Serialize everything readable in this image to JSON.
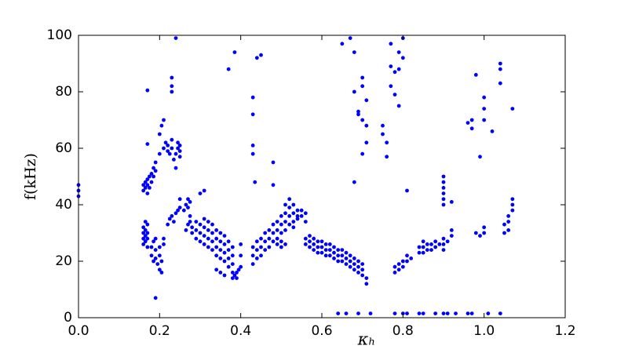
{
  "chart_data": {
    "type": "scatter",
    "xlabel": "κₕ",
    "ylabel": "f(kHz)",
    "color": "#0000ff",
    "xlim": [
      0,
      1.2
    ],
    "ylim": [
      0,
      100
    ],
    "xticks": [
      {
        "value": 0,
        "label": "0.0"
      },
      0.2,
      0.4,
      0.6,
      0.8,
      {
        "value": 1,
        "label": "1.0"
      },
      1.2
    ],
    "yticks": [
      0,
      20,
      40,
      60,
      80,
      100
    ],
    "x": [
      0,
      0,
      0,
      0.16,
      0.16,
      0.16,
      0.16,
      0.165,
      0.165,
      0.165,
      0.165,
      0.17,
      0.17,
      0.17,
      0.17,
      0.16,
      0.16,
      0.165,
      0.165,
      0.17,
      0.17,
      0.17,
      0.175,
      0.175,
      0.18,
      0.18,
      0.185,
      0.185,
      0.19,
      0.19,
      0.17,
      0.17,
      0.18,
      0.18,
      0.185,
      0.185,
      0.19,
      0.19,
      0.19,
      0.195,
      0.2,
      0.2,
      0.2,
      0.205,
      0.205,
      0.21,
      0.21,
      0.19,
      0.2,
      0.2,
      0.205,
      0.21,
      0.21,
      0.215,
      0.22,
      0.22,
      0.225,
      0.23,
      0.23,
      0.235,
      0.24,
      0.24,
      0.245,
      0.245,
      0.25,
      0.25,
      0.25,
      0.23,
      0.23,
      0.23,
      0.24,
      0.22,
      0.225,
      0.23,
      0.235,
      0.24,
      0.245,
      0.25,
      0.25,
      0.26,
      0.265,
      0.27,
      0.27,
      0.275,
      0.275,
      0.265,
      0.27,
      0.275,
      0.28,
      0.28,
      0.29,
      0.29,
      0.29,
      0.3,
      0.3,
      0.3,
      0.31,
      0.31,
      0.31,
      0.31,
      0.32,
      0.32,
      0.32,
      0.32,
      0.33,
      0.33,
      0.33,
      0.33,
      0.34,
      0.34,
      0.34,
      0.34,
      0.35,
      0.35,
      0.35,
      0.35,
      0.36,
      0.36,
      0.36,
      0.36,
      0.37,
      0.37,
      0.37,
      0.37,
      0.38,
      0.38,
      0.38,
      0.38,
      0.34,
      0.35,
      0.36,
      0.38,
      0.385,
      0.39,
      0.39,
      0.395,
      0.4,
      0.4,
      0.4,
      0.3,
      0.31,
      0.37,
      0.385,
      0.43,
      0.43,
      0.43,
      0.43,
      0.435,
      0.44,
      0.45,
      0.43,
      0.43,
      0.43,
      0.44,
      0.44,
      0.44,
      0.45,
      0.45,
      0.45,
      0.46,
      0.46,
      0.46,
      0.47,
      0.47,
      0.47,
      0.48,
      0.48,
      0.48,
      0.49,
      0.49,
      0.49,
      0.49,
      0.5,
      0.5,
      0.5,
      0.5,
      0.51,
      0.51,
      0.51,
      0.51,
      0.52,
      0.52,
      0.52,
      0.52,
      0.53,
      0.53,
      0.53,
      0.53,
      0.54,
      0.54,
      0.54,
      0.55,
      0.55,
      0.56,
      0.56,
      0.48,
      0.48,
      0.5,
      0.51,
      0.56,
      0.56,
      0.57,
      0.57,
      0.57,
      0.58,
      0.58,
      0.58,
      0.59,
      0.59,
      0.59,
      0.6,
      0.6,
      0.6,
      0.61,
      0.61,
      0.61,
      0.62,
      0.62,
      0.62,
      0.63,
      0.63,
      0.63,
      0.64,
      0.64,
      0.64,
      0.65,
      0.65,
      0.65,
      0.66,
      0.66,
      0.66,
      0.67,
      0.67,
      0.67,
      0.68,
      0.68,
      0.68,
      0.69,
      0.69,
      0.69,
      0.7,
      0.7,
      0.7,
      0.71,
      0.71,
      0.65,
      0.67,
      0.68,
      0.68,
      0.69,
      0.69,
      0.7,
      0.7,
      0.7,
      0.71,
      0.71,
      0.71,
      0.7,
      0.68,
      0.75,
      0.75,
      0.76,
      0.77,
      0.77,
      0.77,
      0.78,
      0.78,
      0.79,
      0.79,
      0.79,
      0.8,
      0.8,
      0.76,
      0.78,
      0.78,
      0.79,
      0.79,
      0.8,
      0.8,
      0.81,
      0.81,
      0.82,
      0.84,
      0.84,
      0.85,
      0.85,
      0.85,
      0.86,
      0.86,
      0.87,
      0.87,
      0.88,
      0.88,
      0.89,
      0.9,
      0.9,
      0.9,
      0.91,
      0.92,
      0.92,
      0.81,
      0.92,
      0.9,
      0.9,
      0.9,
      0.9,
      0.9,
      0.9,
      0.96,
      0.97,
      0.97,
      0.98,
      0.99,
      1,
      1,
      1,
      1.02,
      1.04,
      1.04,
      1.04,
      1.07,
      0.98,
      0.99,
      1,
      1,
      1.05,
      1.05,
      1.06,
      1.06,
      1.07,
      1.07,
      1.07,
      1.06,
      0.64,
      0.66,
      0.69,
      0.72,
      0.78,
      0.8,
      0.81,
      0.84,
      0.85,
      0.88,
      0.9,
      0.91,
      0.93,
      0.96,
      0.97,
      1.01,
      1.04
    ],
    "values": [
      43,
      45,
      47,
      26,
      28,
      30,
      32,
      27,
      29,
      31,
      34,
      25,
      28,
      30,
      33,
      45,
      47,
      46,
      48,
      44,
      47,
      49,
      46,
      50,
      48,
      51,
      50,
      53,
      52,
      55,
      80.5,
      61.5,
      22,
      25,
      27,
      20,
      24,
      28,
      21,
      19,
      17,
      22,
      25,
      16,
      20,
      26,
      28,
      7,
      58,
      65,
      68,
      60,
      70,
      62,
      59,
      61,
      58,
      63,
      60,
      56,
      53,
      58,
      60,
      62,
      57,
      59,
      61,
      82,
      85,
      80,
      99,
      33,
      35,
      36,
      34,
      37,
      38,
      39,
      42,
      38,
      40,
      42,
      39,
      41,
      36,
      31,
      33,
      34,
      30,
      32,
      28,
      31,
      34,
      27,
      30,
      33,
      26,
      29,
      32,
      35,
      25,
      28,
      31,
      34,
      24,
      27,
      30,
      33,
      22,
      25,
      28,
      31,
      21,
      24,
      27,
      30,
      20,
      23,
      26,
      29,
      18,
      21,
      24,
      27,
      16,
      19,
      22,
      25,
      17,
      16,
      15,
      14,
      15,
      16,
      14,
      17,
      18,
      22,
      26,
      44,
      45,
      88,
      94,
      78,
      72,
      61,
      58,
      48,
      92,
      93,
      19,
      22,
      25,
      21,
      24,
      27,
      22,
      25,
      28,
      24,
      27,
      30,
      25,
      28,
      31,
      27,
      30,
      33,
      28,
      31,
      34,
      26,
      30,
      33,
      36,
      27,
      31,
      34,
      37,
      40,
      33,
      36,
      39,
      42,
      34,
      37,
      40,
      32,
      35,
      38,
      36,
      36,
      38,
      37,
      34,
      55,
      47,
      25,
      26,
      26,
      28,
      25,
      27,
      29,
      24,
      26,
      28,
      23,
      25,
      27,
      23,
      25,
      27,
      22,
      24,
      26,
      22,
      24,
      26,
      21,
      23,
      25,
      20,
      22,
      24,
      20,
      22,
      24,
      19,
      21,
      23,
      18,
      20,
      22,
      17,
      19,
      21,
      16,
      18,
      20,
      15,
      17,
      19,
      14,
      12,
      97,
      99,
      94,
      80,
      73,
      72,
      85,
      82,
      70,
      77,
      68,
      62,
      58,
      48,
      68,
      65,
      57,
      97,
      89,
      82,
      87,
      79,
      94,
      88,
      75,
      99,
      92,
      62,
      16,
      18,
      17,
      19,
      18,
      20,
      20,
      22,
      21,
      23,
      25,
      23,
      25,
      27,
      24,
      26,
      24,
      26,
      25,
      27,
      26,
      24,
      26,
      28,
      27,
      29,
      31,
      45,
      41,
      40,
      42,
      44,
      46,
      48,
      50,
      69,
      70,
      67,
      86,
      57,
      78,
      74,
      70,
      66,
      90,
      88,
      83,
      74,
      30,
      29,
      32,
      30,
      33,
      30,
      34,
      36,
      38,
      40,
      42,
      31,
      1.5,
      1.5,
      1.5,
      1.5,
      1.5,
      1.5,
      1.5,
      1.5,
      1.5,
      1.5,
      1.5,
      1.5,
      1.5,
      1.5,
      1.5,
      1.5,
      1.5
    ]
  }
}
